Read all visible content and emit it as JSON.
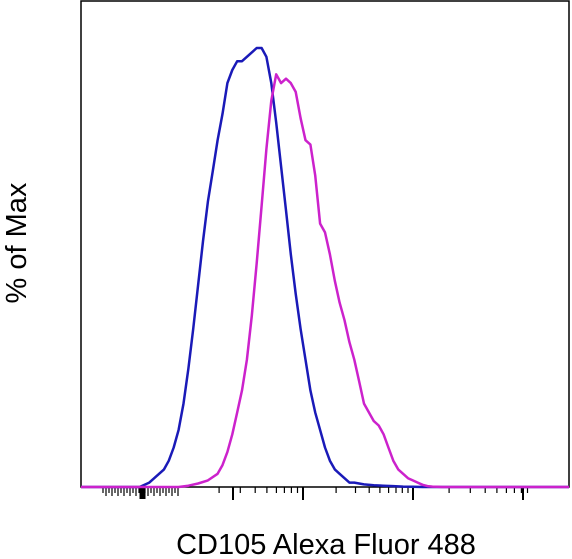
{
  "chart_data": {
    "type": "line",
    "title": "",
    "xlabel": "CD105 Alexa Fluor 488",
    "ylabel": "% of Max",
    "x_scale": "biexponential (unlabeled ticks)",
    "xlim": [
      0,
      100
    ],
    "ylim": [
      0,
      100
    ],
    "grid": false,
    "legend": "none",
    "series": [
      {
        "color": "#1a1ab8",
        "x": [
          0,
          12,
          14,
          16,
          17,
          18,
          19,
          20,
          21,
          22,
          23,
          24,
          25,
          26,
          27,
          28,
          29,
          30,
          31,
          32,
          33,
          34,
          35,
          36,
          37,
          38,
          39,
          40,
          41,
          42,
          43,
          44,
          45,
          46,
          47,
          48,
          49,
          50,
          51,
          52,
          53,
          54,
          55,
          56,
          58,
          60,
          62,
          64,
          66,
          68,
          70,
          74,
          100
        ],
        "y": [
          0,
          0,
          1,
          3,
          4,
          6,
          9,
          13,
          19,
          27,
          36,
          46,
          56,
          65,
          72,
          79,
          85,
          92,
          95,
          97,
          97,
          98,
          99,
          100,
          100,
          98,
          92,
          83,
          73,
          63,
          53,
          44,
          36,
          29,
          22,
          17,
          13,
          9,
          6,
          4,
          3,
          2,
          1,
          1,
          0.6,
          0.4,
          0.3,
          0.2,
          0.1,
          0.05,
          0,
          0,
          0
        ]
      },
      {
        "color": "#cc22cc",
        "x": [
          0,
          20,
          22,
          24,
          26,
          28,
          29,
          30,
          31,
          32,
          33,
          34,
          35,
          36,
          37,
          38,
          39,
          40,
          41,
          42,
          43,
          44,
          45,
          46,
          47,
          48,
          49,
          50,
          51,
          52,
          53,
          54,
          55,
          56,
          57,
          58,
          59,
          60,
          61,
          62,
          63,
          64,
          65,
          66,
          67,
          68,
          69,
          70,
          71,
          72,
          73,
          74,
          100
        ],
        "y": [
          0,
          0,
          0.3,
          0.8,
          1.5,
          3,
          5,
          8,
          12,
          17,
          22,
          29,
          39,
          51,
          64,
          77,
          88,
          94,
          92,
          93,
          92,
          90,
          84,
          79,
          78,
          71,
          60,
          58,
          53,
          47,
          42,
          38,
          33,
          29,
          24,
          19,
          17,
          15,
          14,
          12,
          9,
          6,
          4,
          3,
          2,
          1.5,
          1,
          0.5,
          0.2,
          0.1,
          0.05,
          0,
          0
        ]
      }
    ]
  }
}
